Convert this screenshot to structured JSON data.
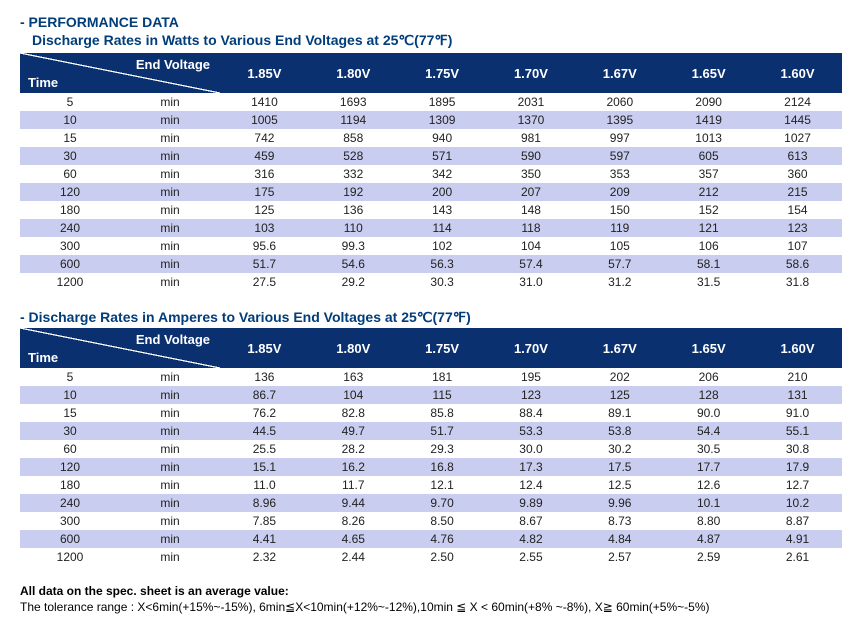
{
  "section_heading": "- PERFORMANCE DATA",
  "table1": {
    "title": "Discharge Rates in Watts to Various End Voltages at 25℃(77℉)",
    "diag_top": "End Voltage",
    "diag_bottom": "Time",
    "voltage_headers": [
      "1.85V",
      "1.80V",
      "1.75V",
      "1.70V",
      "1.67V",
      "1.65V",
      "1.60V"
    ],
    "unit": "min",
    "rows": [
      {
        "t": "5",
        "v": [
          "1410",
          "1693",
          "1895",
          "2031",
          "2060",
          "2090",
          "2124"
        ]
      },
      {
        "t": "10",
        "v": [
          "1005",
          "1194",
          "1309",
          "1370",
          "1395",
          "1419",
          "1445"
        ]
      },
      {
        "t": "15",
        "v": [
          "742",
          "858",
          "940",
          "981",
          "997",
          "1013",
          "1027"
        ]
      },
      {
        "t": "30",
        "v": [
          "459",
          "528",
          "571",
          "590",
          "597",
          "605",
          "613"
        ]
      },
      {
        "t": "60",
        "v": [
          "316",
          "332",
          "342",
          "350",
          "353",
          "357",
          "360"
        ]
      },
      {
        "t": "120",
        "v": [
          "175",
          "192",
          "200",
          "207",
          "209",
          "212",
          "215"
        ]
      },
      {
        "t": "180",
        "v": [
          "125",
          "136",
          "143",
          "148",
          "150",
          "152",
          "154"
        ]
      },
      {
        "t": "240",
        "v": [
          "103",
          "110",
          "114",
          "118",
          "119",
          "121",
          "123"
        ]
      },
      {
        "t": "300",
        "v": [
          "95.6",
          "99.3",
          "102",
          "104",
          "105",
          "106",
          "107"
        ]
      },
      {
        "t": "600",
        "v": [
          "51.7",
          "54.6",
          "56.3",
          "57.4",
          "57.7",
          "58.1",
          "58.6"
        ]
      },
      {
        "t": "1200",
        "v": [
          "27.5",
          "29.2",
          "30.3",
          "31.0",
          "31.2",
          "31.5",
          "31.8"
        ]
      }
    ]
  },
  "table2": {
    "title": "- Discharge Rates in Amperes to Various End Voltages at 25℃(77℉)",
    "diag_top": "End Voltage",
    "diag_bottom": "Time",
    "voltage_headers": [
      "1.85V",
      "1.80V",
      "1.75V",
      "1.70V",
      "1.67V",
      "1.65V",
      "1.60V"
    ],
    "unit": "min",
    "rows": [
      {
        "t": "5",
        "v": [
          "136",
          "163",
          "181",
          "195",
          "202",
          "206",
          "210"
        ]
      },
      {
        "t": "10",
        "v": [
          "86.7",
          "104",
          "115",
          "123",
          "125",
          "128",
          "131"
        ]
      },
      {
        "t": "15",
        "v": [
          "76.2",
          "82.8",
          "85.8",
          "88.4",
          "89.1",
          "90.0",
          "91.0"
        ]
      },
      {
        "t": "30",
        "v": [
          "44.5",
          "49.7",
          "51.7",
          "53.3",
          "53.8",
          "54.4",
          "55.1"
        ]
      },
      {
        "t": "60",
        "v": [
          "25.5",
          "28.2",
          "29.3",
          "30.0",
          "30.2",
          "30.5",
          "30.8"
        ]
      },
      {
        "t": "120",
        "v": [
          "15.1",
          "16.2",
          "16.8",
          "17.3",
          "17.5",
          "17.7",
          "17.9"
        ]
      },
      {
        "t": "180",
        "v": [
          "11.0",
          "11.7",
          "12.1",
          "12.4",
          "12.5",
          "12.6",
          "12.7"
        ]
      },
      {
        "t": "240",
        "v": [
          "8.96",
          "9.44",
          "9.70",
          "9.89",
          "9.96",
          "10.1",
          "10.2"
        ]
      },
      {
        "t": "300",
        "v": [
          "7.85",
          "8.26",
          "8.50",
          "8.67",
          "8.73",
          "8.80",
          "8.87"
        ]
      },
      {
        "t": "600",
        "v": [
          "4.41",
          "4.65",
          "4.76",
          "4.82",
          "4.84",
          "4.87",
          "4.91"
        ]
      },
      {
        "t": "1200",
        "v": [
          "2.32",
          "2.44",
          "2.50",
          "2.55",
          "2.57",
          "2.59",
          "2.61"
        ]
      }
    ]
  },
  "footnote_bold": "All data on the spec. sheet is an average value:",
  "footnote": "The tolerance range : X<6min(+15%~-15%), 6min≦X<10min(+12%~-12%),10min ≦ X < 60min(+8% ~-8%), X≧ 60min(+5%~-5%)",
  "colors": {
    "header_bg": "#0a3070",
    "row_even_bg": "#c9cdef",
    "title_color": "#003d7a"
  }
}
